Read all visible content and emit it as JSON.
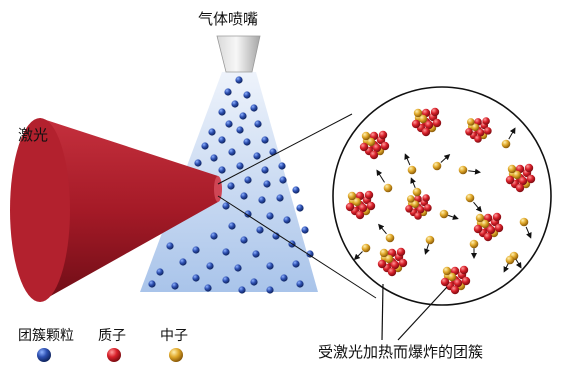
{
  "labels": {
    "nozzle": "气体喷嘴",
    "laser": "激光",
    "exploded_clusters": "受激光加热而爆炸的团簇"
  },
  "legend": [
    {
      "key": "cluster",
      "label": "团簇颗粒",
      "color": "#1f3f8f"
    },
    {
      "key": "proton",
      "label": "质子",
      "color": "#d8202a"
    },
    {
      "key": "neutron",
      "label": "中子",
      "color": "#e0a82a"
    }
  ],
  "colors": {
    "laser": "#b01d2a",
    "gas_jet": "#a9c4ea",
    "cluster": "#1f3f8f",
    "proton": "#d8202a",
    "neutron": "#e0a82a"
  }
}
